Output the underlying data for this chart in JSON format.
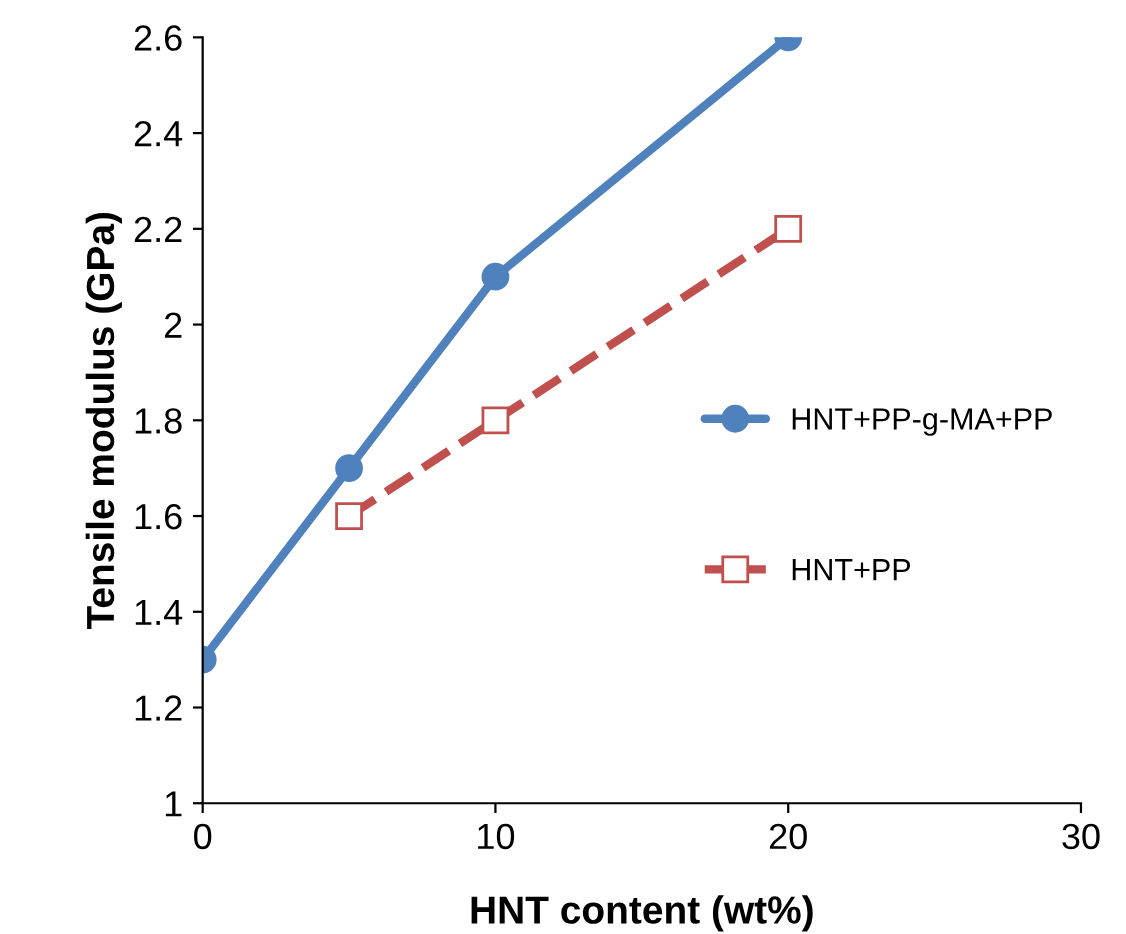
{
  "chart_data": {
    "type": "line",
    "xlabel": "HNT content (wt%)",
    "ylabel": "Tensile modulus (GPa)",
    "xlim": [
      0,
      30
    ],
    "xticks": [
      0,
      10,
      20,
      30
    ],
    "ylim": [
      1,
      2.6
    ],
    "yticks": [
      1,
      1.2,
      1.4,
      1.6,
      1.8,
      2,
      2.2,
      2.4,
      2.6
    ],
    "grid": false,
    "legend": "right",
    "series": [
      {
        "name": "HNT+PP-g-MA+PP",
        "color": "#4f81bd",
        "x": [
          0,
          5,
          10,
          20
        ],
        "values": [
          1.3,
          1.7,
          2.1,
          2.6
        ],
        "marker": "circle",
        "line_style": "solid"
      },
      {
        "name": "HNT+PP",
        "color": "#c0504d",
        "x": [
          5,
          10,
          20
        ],
        "values": [
          1.6,
          1.8,
          2.2
        ],
        "marker": "square",
        "line_style": "dashed"
      }
    ]
  }
}
